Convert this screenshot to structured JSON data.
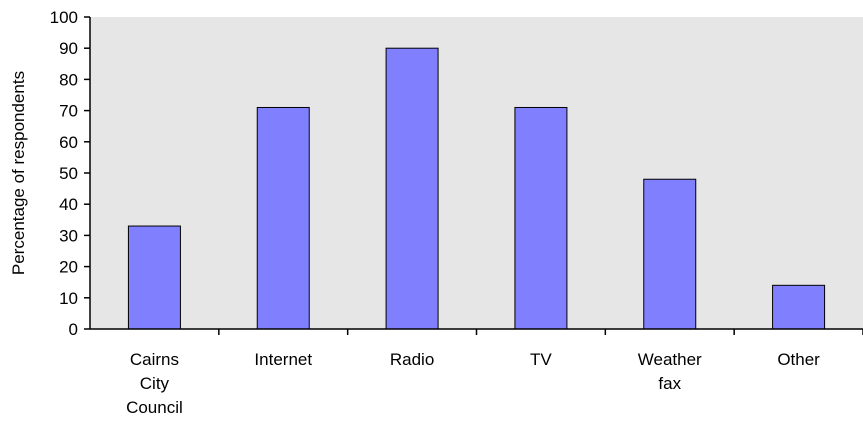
{
  "chart_data": {
    "type": "bar",
    "title": "",
    "xlabel": "",
    "ylabel": "Percentage of respondents",
    "ylim": [
      0,
      100
    ],
    "yticks": [
      0,
      10,
      20,
      30,
      40,
      50,
      60,
      70,
      80,
      90,
      100
    ],
    "categories": [
      [
        "Cairns",
        "City",
        "Council"
      ],
      [
        "Internet"
      ],
      [
        "Radio"
      ],
      [
        "TV"
      ],
      [
        "Weather",
        "fax"
      ],
      [
        "Other"
      ]
    ],
    "values": [
      33,
      71,
      90,
      71,
      48,
      14
    ],
    "grid": false,
    "legend": "none",
    "colors": {
      "plot_background": "#e6e6e6",
      "bar_fill": "#8080ff",
      "bar_stroke": "#000000",
      "axis": "#000000"
    }
  }
}
